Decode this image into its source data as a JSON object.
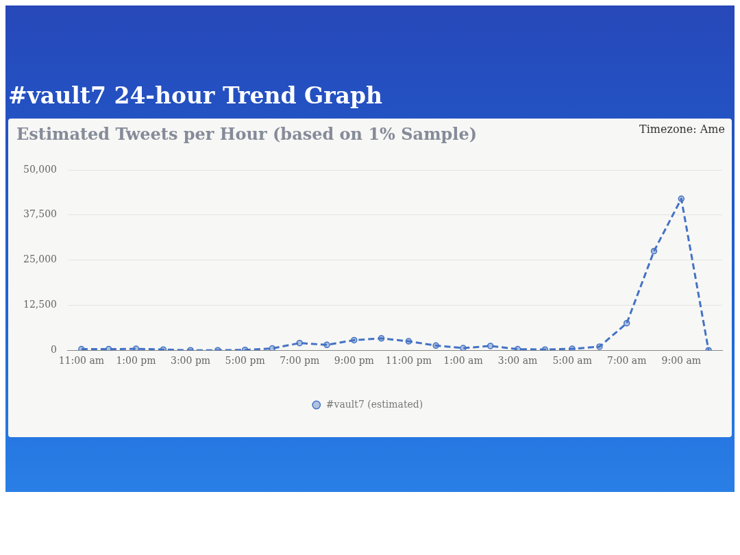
{
  "chart_data": {
    "type": "line",
    "title": "#vault7 24-hour Trend Graph",
    "subtitle": "Estimated Tweets per Hour (based on 1% Sample)",
    "annotations": [
      "Timezone: Ame"
    ],
    "categories": [
      "11:00 am",
      null,
      "1:00 pm",
      null,
      "3:00 pm",
      null,
      "5:00 pm",
      null,
      "7:00 pm",
      null,
      "9:00 pm",
      null,
      "11:00 pm",
      null,
      "1:00 am",
      null,
      "3:00 am",
      null,
      "5:00 am",
      null,
      "7:00 am",
      null,
      "9:00 am",
      null
    ],
    "series": [
      {
        "name": "#vault7 (estimated)",
        "color": "#4472c4",
        "values": [
          300,
          300,
          400,
          200,
          0,
          0,
          100,
          500,
          2000,
          1500,
          2800,
          3300,
          2500,
          1300,
          600,
          1200,
          300,
          200,
          400,
          1000,
          7500,
          27500,
          42000,
          0
        ]
      }
    ],
    "ylim": [
      0,
      50000
    ],
    "yticks": [
      0,
      {
        "value": 12500,
        "label": "12,500"
      },
      {
        "value": 25000,
        "label": "25,000"
      },
      {
        "value": 37500,
        "label": "37,500"
      },
      {
        "value": 50000,
        "label": "50,000"
      }
    ],
    "grid": "y",
    "legend": "bottom",
    "marker": "circle",
    "line_style": "dashed"
  }
}
